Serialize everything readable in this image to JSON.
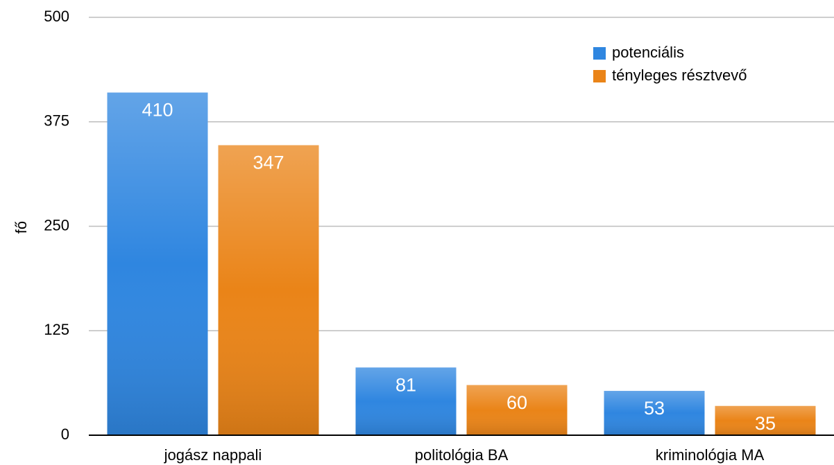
{
  "chart_data": {
    "type": "bar",
    "ylabel": "fő",
    "categories": [
      "jogász nappali",
      "politológia BA",
      "kriminológia MA"
    ],
    "series": [
      {
        "name": "potenciális",
        "color": "#2f86e0",
        "values": [
          410,
          81,
          53
        ]
      },
      {
        "name": "tényleges résztvevő",
        "color": "#ea8418",
        "values": [
          347,
          60,
          35
        ]
      }
    ],
    "ylim": [
      0,
      500
    ],
    "yticks": [
      0,
      125,
      250,
      375,
      500
    ],
    "grid": true,
    "legend": "top-right"
  }
}
